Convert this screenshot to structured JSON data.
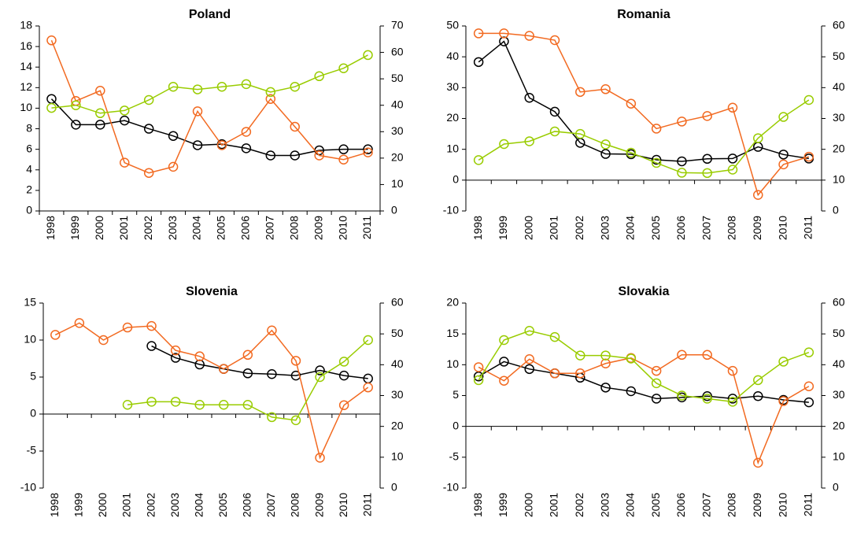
{
  "chart_data": [
    {
      "type": "line",
      "title": "Poland",
      "categories": [
        "1998",
        "1999",
        "2000",
        "2001",
        "2002",
        "2003",
        "2004",
        "2005",
        "2006",
        "2007",
        "2008",
        "2009",
        "2010",
        "2011"
      ],
      "series": [
        {
          "color": "#000000",
          "values": [
            10.9,
            8.4,
            8.4,
            8.8,
            8.0,
            7.3,
            6.4,
            6.5,
            6.1,
            5.4,
            5.4,
            5.9,
            6.0,
            6.0
          ]
        },
        {
          "color": "#f26a21",
          "values": [
            16.6,
            10.7,
            11.7,
            4.7,
            3.7,
            4.3,
            9.7,
            6.4,
            7.7,
            10.9,
            8.2,
            5.4,
            5.0,
            5.7
          ]
        },
        {
          "color": "#99cc00",
          "axis": "y2",
          "values": [
            39,
            40,
            37,
            38,
            42,
            47,
            46,
            47,
            48,
            45,
            47,
            51,
            54,
            59
          ]
        }
      ],
      "ylim": [
        0,
        18
      ],
      "yticks": [
        0,
        2,
        4,
        6,
        8,
        10,
        12,
        14,
        16,
        18
      ],
      "y2lim": [
        0,
        70
      ],
      "y2ticks": [
        0,
        10,
        20,
        30,
        40,
        50,
        60,
        70
      ]
    },
    {
      "type": "line",
      "title": "Romania",
      "categories": [
        "1998",
        "1999",
        "2000",
        "2001",
        "2002",
        "2003",
        "2004",
        "2005",
        "2006",
        "2007",
        "2008",
        "2009",
        "2010",
        "2011"
      ],
      "series": [
        {
          "color": "#000000",
          "values": [
            38.3,
            45.0,
            26.7,
            22.2,
            12.1,
            8.5,
            8.4,
            6.6,
            6.1,
            6.9,
            7.0,
            10.8,
            8.3,
            7.0
          ]
        },
        {
          "color": "#f26a21",
          "values": [
            47.6,
            47.6,
            46.8,
            45.4,
            28.6,
            29.5,
            24.8,
            16.7,
            19.0,
            20.8,
            23.5,
            -4.8,
            5.1,
            7.6
          ]
        },
        {
          "color": "#99cc00",
          "axis": "y2",
          "values": [
            16.5,
            21.7,
            22.6,
            25.8,
            25.0,
            21.6,
            18.9,
            15.6,
            12.4,
            12.3,
            13.4,
            23.6,
            30.5,
            36.0
          ]
        }
      ],
      "ylim": [
        -10,
        50
      ],
      "yticks": [
        -10,
        0,
        10,
        20,
        30,
        40,
        50
      ],
      "y2lim": [
        0,
        60
      ],
      "y2ticks": [
        0,
        10,
        20,
        30,
        40,
        50,
        60
      ]
    },
    {
      "type": "line",
      "title": "Slovenia",
      "categories": [
        "1998",
        "1999",
        "2000",
        "2001",
        "2002",
        "2003",
        "2004",
        "2005",
        "2006",
        "2007",
        "2008",
        "2009",
        "2010",
        "2011"
      ],
      "series": [
        {
          "color": "#000000",
          "values": [
            null,
            null,
            null,
            null,
            9.2,
            7.6,
            6.7,
            6.1,
            5.5,
            5.4,
            5.2,
            5.9,
            5.2,
            4.8
          ]
        },
        {
          "color": "#f26a21",
          "values": [
            10.7,
            12.3,
            10.0,
            11.7,
            11.9,
            8.6,
            7.8,
            6.1,
            8.0,
            11.3,
            7.2,
            -5.9,
            1.2,
            3.6
          ]
        },
        {
          "color": "#99cc00",
          "axis": "y2",
          "values": [
            null,
            null,
            null,
            27,
            28,
            28,
            27,
            27,
            27,
            23,
            22,
            36,
            41,
            48
          ]
        }
      ],
      "ylim": [
        -10,
        15
      ],
      "yticks": [
        -10,
        -5,
        0,
        5,
        10,
        15
      ],
      "y2lim": [
        0,
        60
      ],
      "y2ticks": [
        0,
        10,
        20,
        30,
        40,
        50,
        60
      ]
    },
    {
      "type": "line",
      "title": "Slovakia",
      "categories": [
        "1998",
        "1999",
        "2000",
        "2001",
        "2002",
        "2003",
        "2004",
        "2005",
        "2006",
        "2007",
        "2008",
        "2009",
        "2010",
        "2011"
      ],
      "series": [
        {
          "color": "#000000",
          "values": [
            8.1,
            10.5,
            9.3,
            8.6,
            7.9,
            6.3,
            5.7,
            4.5,
            4.7,
            4.9,
            4.5,
            4.9,
            4.3,
            3.9
          ]
        },
        {
          "color": "#f26a21",
          "values": [
            9.6,
            7.4,
            10.9,
            8.6,
            8.6,
            10.2,
            11.1,
            9.0,
            11.6,
            11.6,
            9.0,
            -5.9,
            4.1,
            6.5
          ]
        },
        {
          "color": "#99cc00",
          "axis": "y2",
          "values": [
            35,
            48,
            51,
            49,
            43,
            43,
            42,
            34,
            30,
            29,
            28,
            35,
            41,
            44
          ]
        }
      ],
      "ylim": [
        -10,
        20
      ],
      "yticks": [
        -10,
        -5,
        0,
        5,
        10,
        15,
        20
      ],
      "y2lim": [
        0,
        60
      ],
      "y2ticks": [
        0,
        10,
        20,
        30,
        40,
        50,
        60
      ]
    }
  ]
}
